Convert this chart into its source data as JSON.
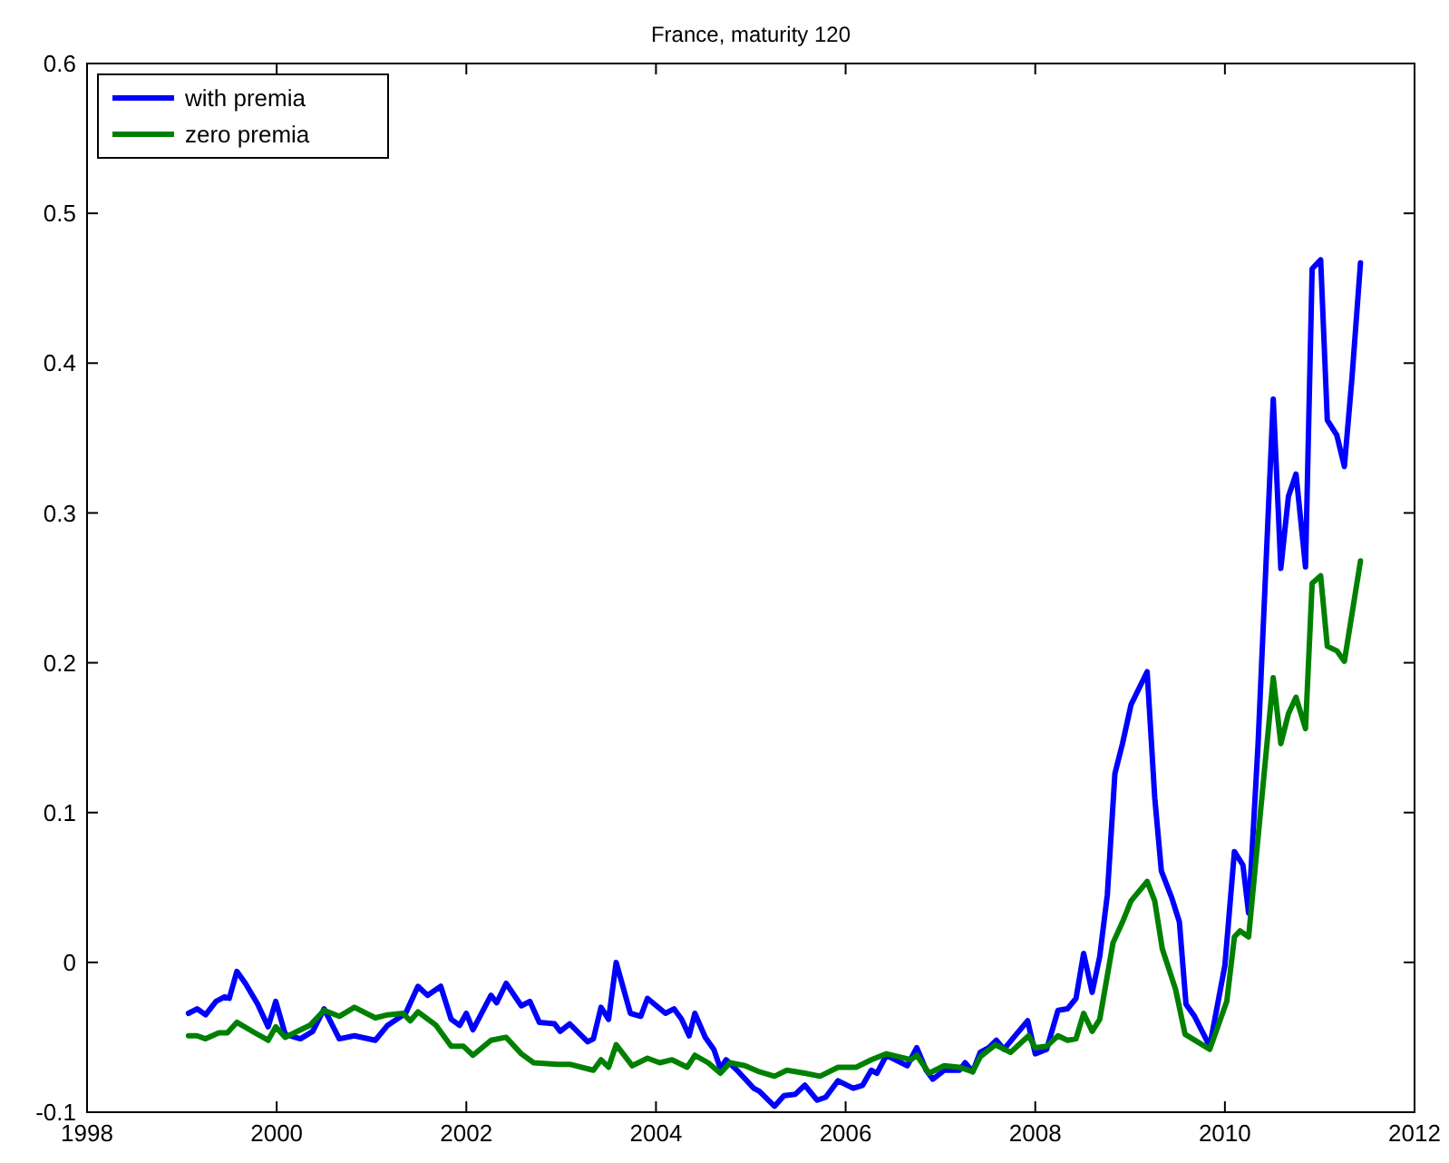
{
  "chart_data": {
    "type": "line",
    "title": "France, maturity 120",
    "xlim": [
      1998,
      2012
    ],
    "xticks": [
      1998,
      2000,
      2002,
      2004,
      2006,
      2008,
      2010,
      2012
    ],
    "ylim": [
      -0.1,
      0.6
    ],
    "yticks": [
      -0.1,
      0,
      0.1,
      0.2,
      0.3,
      0.4,
      0.5,
      0.6
    ],
    "grid": false,
    "legend": "top left",
    "marker": "none",
    "line_style": "solid",
    "series": [
      {
        "name": "with premia",
        "color": "#0000ff",
        "x": [
          1999.07,
          1999.16,
          1999.25,
          1999.36,
          1999.45,
          1999.5,
          1999.58,
          1999.67,
          1999.8,
          1999.91,
          1999.99,
          2000.09,
          2000.25,
          2000.38,
          2000.5,
          2000.66,
          2000.82,
          2001.04,
          2001.17,
          2001.36,
          2001.49,
          2001.59,
          2001.73,
          2001.84,
          2001.93,
          2002.0,
          2002.07,
          2002.26,
          2002.32,
          2002.42,
          2002.58,
          2002.67,
          2002.77,
          2002.93,
          2002.99,
          2003.09,
          2003.28,
          2003.34,
          2003.42,
          2003.5,
          2003.58,
          2003.73,
          2003.84,
          2003.91,
          2004.1,
          2004.19,
          2004.27,
          2004.35,
          2004.41,
          2004.52,
          2004.61,
          2004.68,
          2004.74,
          2004.87,
          2005.03,
          2005.09,
          2005.25,
          2005.35,
          2005.47,
          2005.57,
          2005.7,
          2005.79,
          2005.92,
          2006.08,
          2006.18,
          2006.27,
          2006.33,
          2006.43,
          2006.65,
          2006.75,
          2006.85,
          2006.92,
          2007.04,
          2007.2,
          2007.26,
          2007.34,
          2007.42,
          2007.51,
          2007.59,
          2007.67,
          2007.8,
          2007.92,
          2008.0,
          2008.12,
          2008.24,
          2008.34,
          2008.43,
          2008.51,
          2008.6,
          2008.68,
          2008.76,
          2008.84,
          2008.92,
          2009.01,
          2009.18,
          2009.26,
          2009.33,
          2009.44,
          2009.52,
          2009.59,
          2009.68,
          2009.84,
          2010.0,
          2010.1,
          2010.19,
          2010.25,
          2010.35,
          2010.51,
          2010.59,
          2010.67,
          2010.75,
          2010.85,
          2010.92,
          2011.01,
          2011.08,
          2011.18,
          2011.26,
          2011.34,
          2011.43
        ],
        "values": [
          -0.034,
          -0.031,
          -0.035,
          -0.026,
          -0.023,
          -0.024,
          -0.006,
          -0.014,
          -0.028,
          -0.043,
          -0.026,
          -0.048,
          -0.051,
          -0.046,
          -0.031,
          -0.051,
          -0.049,
          -0.052,
          -0.042,
          -0.034,
          -0.016,
          -0.022,
          -0.016,
          -0.038,
          -0.042,
          -0.034,
          -0.045,
          -0.022,
          -0.027,
          -0.014,
          -0.029,
          -0.026,
          -0.04,
          -0.041,
          -0.046,
          -0.041,
          -0.053,
          -0.051,
          -0.03,
          -0.038,
          0.0,
          -0.034,
          -0.036,
          -0.024,
          -0.034,
          -0.031,
          -0.038,
          -0.049,
          -0.034,
          -0.05,
          -0.058,
          -0.071,
          -0.065,
          -0.073,
          -0.084,
          -0.086,
          -0.096,
          -0.089,
          -0.088,
          -0.082,
          -0.092,
          -0.09,
          -0.079,
          -0.084,
          -0.082,
          -0.072,
          -0.074,
          -0.062,
          -0.069,
          -0.057,
          -0.072,
          -0.078,
          -0.072,
          -0.072,
          -0.067,
          -0.073,
          -0.06,
          -0.057,
          -0.052,
          -0.058,
          -0.048,
          -0.039,
          -0.061,
          -0.058,
          -0.032,
          -0.031,
          -0.024,
          0.006,
          -0.02,
          0.004,
          0.045,
          0.126,
          0.146,
          0.172,
          0.194,
          0.11,
          0.061,
          0.043,
          0.027,
          -0.028,
          -0.036,
          -0.056,
          -0.002,
          0.074,
          0.065,
          0.033,
          0.146,
          0.376,
          0.263,
          0.311,
          0.326,
          0.264,
          0.463,
          0.469,
          0.362,
          0.352,
          0.331,
          0.39,
          0.467
        ]
      },
      {
        "name": "zero premia",
        "color": "#008000",
        "x": [
          1999.07,
          1999.16,
          1999.25,
          1999.39,
          1999.48,
          1999.58,
          1999.77,
          1999.91,
          1999.99,
          2000.09,
          2000.22,
          2000.35,
          2000.5,
          2000.66,
          2000.82,
          2001.04,
          2001.17,
          2001.33,
          2001.41,
          2001.49,
          2001.68,
          2001.84,
          2001.97,
          2002.07,
          2002.26,
          2002.42,
          2002.58,
          2002.71,
          2002.96,
          2003.09,
          2003.34,
          2003.42,
          2003.5,
          2003.58,
          2003.75,
          2003.91,
          2004.04,
          2004.17,
          2004.33,
          2004.41,
          2004.55,
          2004.68,
          2004.78,
          2004.94,
          2005.09,
          2005.25,
          2005.38,
          2005.57,
          2005.73,
          2005.92,
          2006.11,
          2006.27,
          2006.43,
          2006.69,
          2006.75,
          2006.88,
          2007.04,
          2007.2,
          2007.34,
          2007.42,
          2007.58,
          2007.74,
          2007.93,
          2008.0,
          2008.12,
          2008.24,
          2008.34,
          2008.43,
          2008.51,
          2008.6,
          2008.68,
          2008.82,
          2008.92,
          2009.01,
          2009.18,
          2009.26,
          2009.34,
          2009.48,
          2009.58,
          2009.84,
          2010.02,
          2010.1,
          2010.16,
          2010.25,
          2010.51,
          2010.59,
          2010.67,
          2010.75,
          2010.85,
          2010.92,
          2011.01,
          2011.08,
          2011.18,
          2011.26,
          2011.43
        ],
        "values": [
          -0.049,
          -0.049,
          -0.051,
          -0.047,
          -0.047,
          -0.04,
          -0.047,
          -0.052,
          -0.043,
          -0.05,
          -0.046,
          -0.042,
          -0.032,
          -0.036,
          -0.03,
          -0.037,
          -0.035,
          -0.034,
          -0.039,
          -0.033,
          -0.042,
          -0.056,
          -0.056,
          -0.062,
          -0.052,
          -0.05,
          -0.061,
          -0.067,
          -0.068,
          -0.068,
          -0.072,
          -0.065,
          -0.07,
          -0.055,
          -0.069,
          -0.064,
          -0.067,
          -0.065,
          -0.07,
          -0.062,
          -0.067,
          -0.074,
          -0.067,
          -0.069,
          -0.073,
          -0.076,
          -0.072,
          -0.074,
          -0.076,
          -0.07,
          -0.07,
          -0.065,
          -0.061,
          -0.065,
          -0.062,
          -0.074,
          -0.069,
          -0.07,
          -0.073,
          -0.063,
          -0.055,
          -0.06,
          -0.049,
          -0.057,
          -0.056,
          -0.049,
          -0.052,
          -0.051,
          -0.034,
          -0.046,
          -0.038,
          0.013,
          0.027,
          0.041,
          0.054,
          0.041,
          0.009,
          -0.018,
          -0.048,
          -0.058,
          -0.026,
          0.017,
          0.021,
          0.017,
          0.19,
          0.146,
          0.166,
          0.177,
          0.156,
          0.253,
          0.258,
          0.211,
          0.208,
          0.201,
          0.268
        ]
      }
    ]
  }
}
